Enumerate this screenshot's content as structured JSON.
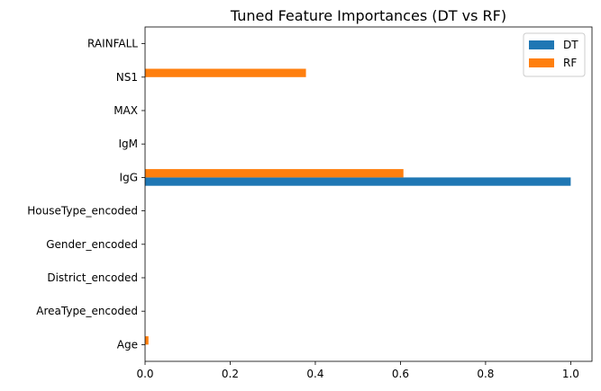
{
  "chart_data": {
    "type": "bar",
    "orientation": "horizontal",
    "title": "Tuned Feature Importances (DT vs RF)",
    "xlabel": "",
    "ylabel": "",
    "categories": [
      "Age",
      "AreaType_encoded",
      "District_encoded",
      "Gender_encoded",
      "HouseType_encoded",
      "IgG",
      "IgM",
      "MAX",
      "NS1",
      "RAINFALL"
    ],
    "series": [
      {
        "name": "DT",
        "color": "#1f77b4",
        "values": [
          0,
          0,
          0,
          0,
          0,
          1.0,
          0,
          0,
          0,
          0
        ]
      },
      {
        "name": "RF",
        "color": "#ff7f0e",
        "values": [
          0.008,
          0,
          0,
          0,
          0,
          0.607,
          0,
          0,
          0.378,
          0
        ]
      }
    ],
    "xlim": [
      0,
      1.05
    ],
    "xticks": [
      "0.0",
      "0.2",
      "0.4",
      "0.6",
      "0.8",
      "1.0"
    ],
    "grid": false,
    "legend_position": "top-right"
  }
}
